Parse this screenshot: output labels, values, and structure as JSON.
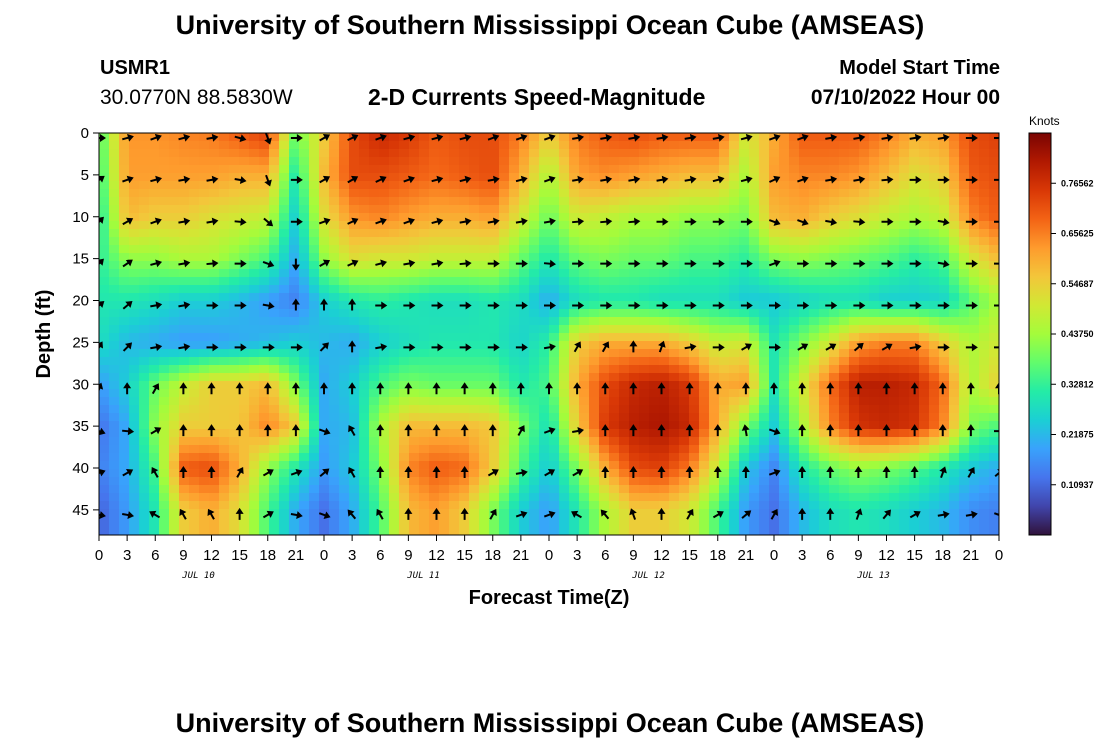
{
  "title": "University of Southern Mississippi Ocean Cube (AMSEAS)",
  "footer_title": "University of Southern Mississippi Ocean Cube (AMSEAS)",
  "station": {
    "id": "USMR1",
    "coords": "30.0770N  88.5830W"
  },
  "plot_title": "2-D Currents Speed-Magnitude",
  "model_start": {
    "label": "Model Start Time",
    "value": "07/10/2022 Hour 00"
  },
  "chart_data": {
    "type": "heatmap",
    "title": "2-D Currents Speed-Magnitude",
    "xlabel": "Forecast Time(Z)",
    "ylabel": "Depth (ft)",
    "xlim": [
      0,
      96
    ],
    "ylim": [
      48,
      0
    ],
    "x_ticks": [
      0,
      3,
      6,
      9,
      12,
      15,
      18,
      21,
      24,
      27,
      30,
      33,
      36,
      39,
      42,
      45,
      48,
      51,
      54,
      57,
      60,
      63,
      66,
      69,
      72,
      75,
      78,
      81,
      84,
      87,
      90,
      93,
      96
    ],
    "x_tick_labels": [
      "0",
      "3",
      "6",
      "9",
      "12",
      "15",
      "18",
      "21",
      "0",
      "3",
      "6",
      "9",
      "12",
      "15",
      "18",
      "21",
      "0",
      "3",
      "6",
      "9",
      "12",
      "15",
      "18",
      "21",
      "0",
      "3",
      "6",
      "9",
      "12",
      "15",
      "18",
      "21",
      "0"
    ],
    "day_labels": [
      {
        "hour": 12,
        "label": "JUL 10"
      },
      {
        "hour": 36,
        "label": "JUL 11"
      },
      {
        "hour": 60,
        "label": "JUL 12"
      },
      {
        "hour": 84,
        "label": "JUL 13"
      }
    ],
    "y_ticks": [
      0,
      5,
      10,
      15,
      20,
      25,
      30,
      35,
      40,
      45
    ],
    "y_tick_labels": [
      "0",
      "5",
      "10",
      "15",
      "20",
      "25",
      "30",
      "35",
      "40",
      "45"
    ],
    "colorbar": {
      "unit": "Knots",
      "min": 0,
      "max": 0.875,
      "ticks": [
        0.10937,
        0.21875,
        0.32812,
        0.4375,
        0.54687,
        0.65625,
        0.76562
      ],
      "tick_labels": [
        "0.10937",
        "0.21875",
        "0.32812",
        "0.43750",
        "0.54687",
        "0.65625",
        "0.76562"
      ],
      "colors": [
        "#30123b",
        "#4145ab",
        "#4675ed",
        "#39a2fc",
        "#1bcfd4",
        "#24eca6",
        "#61fc6c",
        "#a4fc3b",
        "#d1e834",
        "#f3c63a",
        "#fe9b2d",
        "#f36315",
        "#d93806",
        "#b11901",
        "#7a0403"
      ]
    },
    "depths_ft": [
      0,
      5,
      10,
      15,
      20,
      25,
      30,
      35,
      40,
      45
    ],
    "hours": [
      0,
      3,
      6,
      9,
      12,
      15,
      18,
      21,
      24,
      27,
      30,
      33,
      36,
      39,
      42,
      45,
      48,
      51,
      54,
      57,
      60,
      63,
      66,
      69,
      72,
      75,
      78,
      81,
      84,
      87,
      90,
      93,
      96
    ],
    "speed_knots": [
      [
        0.35,
        0.63,
        0.63,
        0.65,
        0.66,
        0.7,
        0.74,
        0.38,
        0.55,
        0.72,
        0.78,
        0.75,
        0.7,
        0.72,
        0.72,
        0.66,
        0.55,
        0.66,
        0.7,
        0.72,
        0.7,
        0.7,
        0.7,
        0.5,
        0.6,
        0.7,
        0.7,
        0.7,
        0.66,
        0.6,
        0.62,
        0.72,
        0.74
      ],
      [
        0.33,
        0.62,
        0.62,
        0.62,
        0.62,
        0.6,
        0.6,
        0.3,
        0.58,
        0.72,
        0.72,
        0.7,
        0.68,
        0.7,
        0.72,
        0.6,
        0.45,
        0.62,
        0.64,
        0.62,
        0.6,
        0.58,
        0.58,
        0.45,
        0.62,
        0.65,
        0.65,
        0.63,
        0.58,
        0.52,
        0.55,
        0.7,
        0.72
      ],
      [
        0.3,
        0.58,
        0.55,
        0.55,
        0.52,
        0.5,
        0.48,
        0.25,
        0.52,
        0.63,
        0.65,
        0.62,
        0.6,
        0.6,
        0.62,
        0.5,
        0.38,
        0.5,
        0.48,
        0.45,
        0.45,
        0.42,
        0.42,
        0.4,
        0.58,
        0.6,
        0.55,
        0.52,
        0.48,
        0.45,
        0.48,
        0.65,
        0.7
      ],
      [
        0.32,
        0.42,
        0.42,
        0.45,
        0.45,
        0.4,
        0.35,
        0.2,
        0.42,
        0.52,
        0.5,
        0.5,
        0.48,
        0.48,
        0.48,
        0.38,
        0.3,
        0.38,
        0.4,
        0.38,
        0.38,
        0.35,
        0.35,
        0.32,
        0.4,
        0.42,
        0.4,
        0.38,
        0.36,
        0.32,
        0.35,
        0.5,
        0.58
      ],
      [
        0.3,
        0.3,
        0.28,
        0.25,
        0.25,
        0.22,
        0.18,
        0.14,
        0.25,
        0.3,
        0.32,
        0.3,
        0.28,
        0.28,
        0.3,
        0.28,
        0.2,
        0.28,
        0.3,
        0.3,
        0.28,
        0.28,
        0.28,
        0.24,
        0.24,
        0.26,
        0.28,
        0.28,
        0.25,
        0.25,
        0.26,
        0.36,
        0.45
      ],
      [
        0.28,
        0.22,
        0.2,
        0.18,
        0.18,
        0.2,
        0.22,
        0.25,
        0.22,
        0.2,
        0.25,
        0.28,
        0.3,
        0.3,
        0.3,
        0.26,
        0.32,
        0.55,
        0.6,
        0.6,
        0.6,
        0.55,
        0.48,
        0.5,
        0.3,
        0.4,
        0.5,
        0.62,
        0.65,
        0.65,
        0.55,
        0.45,
        0.5
      ],
      [
        0.18,
        0.25,
        0.38,
        0.48,
        0.55,
        0.55,
        0.58,
        0.4,
        0.2,
        0.25,
        0.35,
        0.4,
        0.38,
        0.38,
        0.38,
        0.3,
        0.35,
        0.6,
        0.72,
        0.78,
        0.8,
        0.75,
        0.6,
        0.62,
        0.3,
        0.5,
        0.68,
        0.8,
        0.8,
        0.78,
        0.68,
        0.45,
        0.55
      ],
      [
        0.12,
        0.2,
        0.42,
        0.55,
        0.55,
        0.56,
        0.65,
        0.55,
        0.2,
        0.22,
        0.45,
        0.58,
        0.58,
        0.58,
        0.56,
        0.4,
        0.28,
        0.55,
        0.75,
        0.8,
        0.82,
        0.78,
        0.6,
        0.4,
        0.25,
        0.45,
        0.65,
        0.76,
        0.78,
        0.76,
        0.65,
        0.4,
        0.35
      ],
      [
        0.14,
        0.2,
        0.35,
        0.7,
        0.72,
        0.6,
        0.42,
        0.3,
        0.18,
        0.24,
        0.4,
        0.65,
        0.7,
        0.68,
        0.55,
        0.35,
        0.24,
        0.4,
        0.6,
        0.72,
        0.74,
        0.66,
        0.48,
        0.24,
        0.15,
        0.3,
        0.38,
        0.42,
        0.4,
        0.36,
        0.3,
        0.24,
        0.2
      ],
      [
        0.1,
        0.18,
        0.3,
        0.55,
        0.6,
        0.52,
        0.35,
        0.2,
        0.12,
        0.2,
        0.35,
        0.58,
        0.62,
        0.55,
        0.4,
        0.25,
        0.18,
        0.3,
        0.45,
        0.55,
        0.55,
        0.5,
        0.35,
        0.18,
        0.12,
        0.22,
        0.28,
        0.3,
        0.28,
        0.25,
        0.22,
        0.16,
        0.14
      ]
    ],
    "direction_deg": [
      [
        0,
        -15,
        -20,
        -15,
        -10,
        15,
        70,
        0,
        -30,
        -25,
        -20,
        -15,
        -15,
        -15,
        -20,
        -20,
        -20,
        -10,
        -10,
        -10,
        -10,
        -10,
        -10,
        -15,
        -20,
        -20,
        -10,
        -10,
        -10,
        -10,
        -10,
        0,
        0
      ],
      [
        -35,
        -20,
        -15,
        -10,
        -10,
        10,
        70,
        0,
        -30,
        -30,
        -25,
        -20,
        -15,
        -15,
        -10,
        -15,
        -20,
        -10,
        -10,
        -10,
        -10,
        -10,
        -15,
        -15,
        -25,
        -20,
        -10,
        -10,
        -5,
        0,
        0,
        0,
        0
      ],
      [
        -45,
        -30,
        -20,
        -10,
        -10,
        5,
        40,
        0,
        -20,
        -25,
        -20,
        -20,
        -15,
        -10,
        -10,
        -10,
        -10,
        -5,
        -5,
        -5,
        0,
        0,
        0,
        0,
        20,
        20,
        10,
        5,
        0,
        0,
        10,
        0,
        0
      ],
      [
        -45,
        -35,
        -15,
        -10,
        -5,
        0,
        20,
        90,
        -30,
        -25,
        -15,
        -10,
        -10,
        -5,
        0,
        0,
        5,
        0,
        0,
        0,
        0,
        0,
        0,
        0,
        -20,
        0,
        0,
        0,
        0,
        0,
        10,
        0,
        0
      ],
      [
        -40,
        -40,
        -10,
        -10,
        0,
        0,
        10,
        -90,
        -90,
        -90,
        0,
        0,
        0,
        0,
        0,
        0,
        0,
        0,
        0,
        0,
        0,
        0,
        0,
        0,
        0,
        0,
        0,
        0,
        0,
        0,
        0,
        0,
        0
      ],
      [
        -60,
        -45,
        -10,
        -10,
        0,
        0,
        0,
        0,
        -45,
        -90,
        -10,
        0,
        0,
        0,
        0,
        0,
        -10,
        -60,
        -60,
        -90,
        -70,
        -10,
        0,
        -30,
        0,
        -30,
        -30,
        -40,
        -30,
        -10,
        0,
        0,
        0
      ],
      [
        -70,
        -90,
        -60,
        -90,
        -90,
        -90,
        -90,
        -90,
        -90,
        -90,
        -90,
        -90,
        -90,
        -90,
        -90,
        -90,
        -90,
        -90,
        -90,
        -90,
        -90,
        -90,
        -90,
        -90,
        -90,
        -90,
        -90,
        -90,
        -90,
        -90,
        -90,
        -90,
        -90
      ],
      [
        20,
        5,
        -30,
        -90,
        -90,
        -90,
        -90,
        -90,
        20,
        -120,
        -90,
        -90,
        -90,
        -90,
        -90,
        -60,
        -20,
        -10,
        -90,
        -90,
        -90,
        -90,
        -90,
        -100,
        20,
        -90,
        -90,
        -90,
        -90,
        -90,
        -90,
        -90,
        0
      ],
      [
        -20,
        -30,
        -120,
        -90,
        -90,
        -60,
        -30,
        -20,
        -40,
        -120,
        -90,
        -90,
        -90,
        -90,
        -30,
        -10,
        -30,
        -30,
        -90,
        -90,
        -90,
        -90,
        -90,
        -90,
        -20,
        -90,
        -90,
        -90,
        -90,
        -90,
        -70,
        -60,
        -40
      ],
      [
        10,
        10,
        -150,
        -120,
        -120,
        -90,
        -30,
        10,
        20,
        -130,
        -120,
        -90,
        -90,
        -90,
        -60,
        -20,
        -20,
        -150,
        -130,
        -110,
        -90,
        -60,
        -30,
        -40,
        -60,
        -90,
        -90,
        -70,
        -50,
        -30,
        -10,
        -10,
        20
      ]
    ]
  }
}
